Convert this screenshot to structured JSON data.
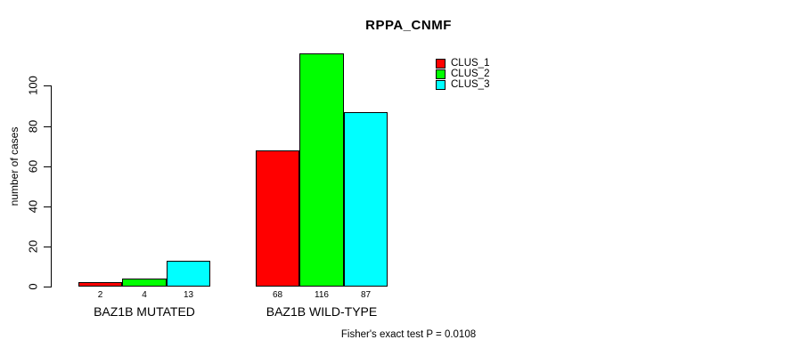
{
  "chart_data": {
    "type": "bar",
    "title": "RPPA_CNMF",
    "ylabel": "number of cases",
    "xlabel": "",
    "categories": [
      "BAZ1B MUTATED",
      "BAZ1B WILD-TYPE"
    ],
    "series": [
      {
        "name": "CLUS_1",
        "color": "#ff0000",
        "values": [
          2,
          68
        ]
      },
      {
        "name": "CLUS_2",
        "color": "#00ff00",
        "values": [
          4,
          116
        ]
      },
      {
        "name": "CLUS_3",
        "color": "#00ffff",
        "values": [
          13,
          87
        ]
      }
    ],
    "yticks": [
      0,
      20,
      40,
      60,
      80,
      100
    ],
    "ylim": [
      0,
      116
    ],
    "grid": false,
    "bar_outline_color": "#000000",
    "bar_value_labels": true,
    "legend_position": "top-right",
    "annotation": "Fisher's exact test P = 0.0108",
    "background_color": "#ffffff"
  }
}
